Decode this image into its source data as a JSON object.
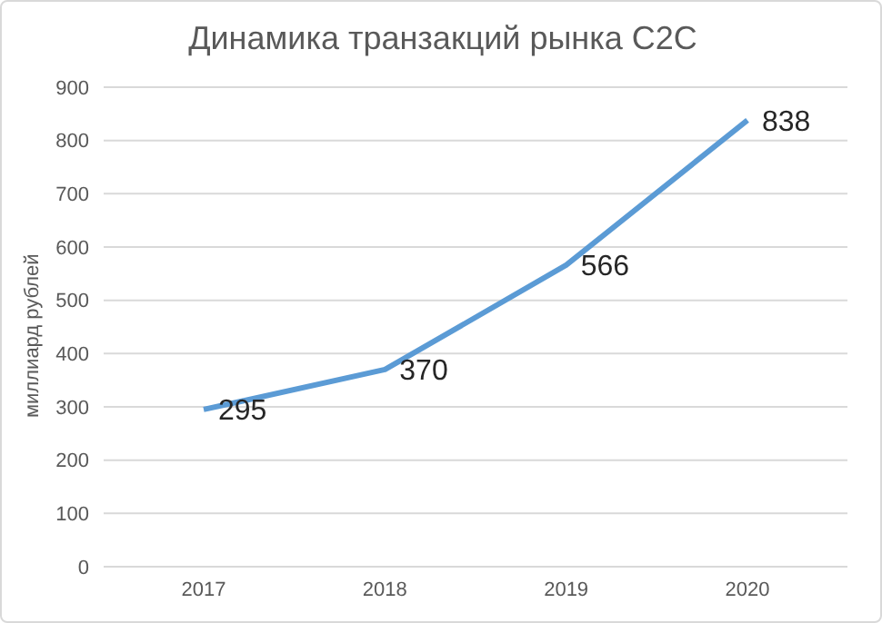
{
  "chart_data": {
    "type": "line",
    "title": "Динамика транзакций рынка C2C",
    "ylabel": "миллиард рублей",
    "categories": [
      "2017",
      "2018",
      "2019",
      "2020"
    ],
    "series": [
      {
        "color": "#5b9bd5",
        "values": [
          295,
          370,
          566,
          838
        ]
      }
    ],
    "ylim": [
      0,
      900
    ],
    "yticks": [
      0,
      100,
      200,
      300,
      400,
      500,
      600,
      700,
      800,
      900
    ],
    "grid": "y",
    "marker": "none",
    "line_style": "solid",
    "data_labels": true
  }
}
